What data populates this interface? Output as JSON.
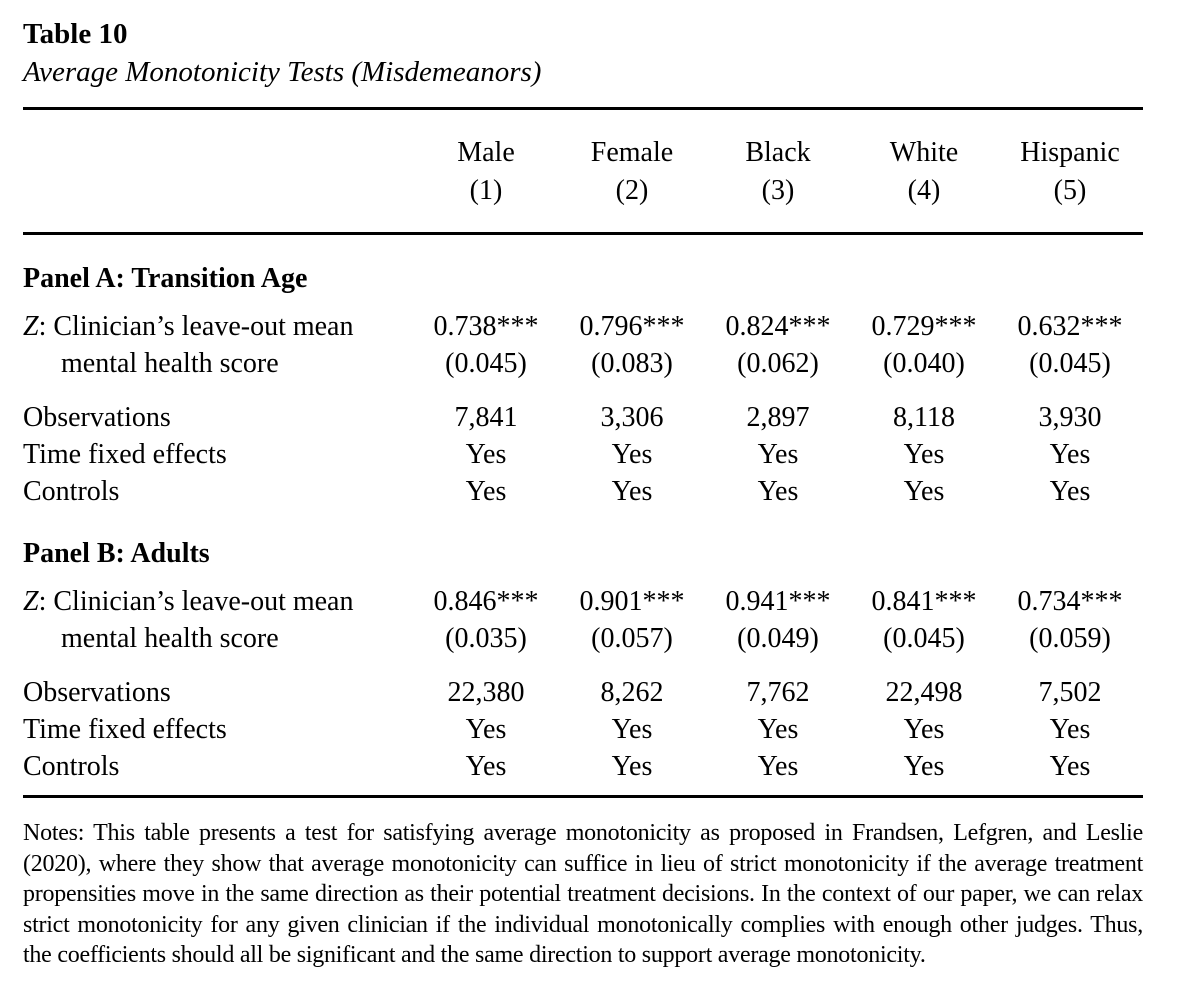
{
  "page": {
    "title": "Table 10",
    "subtitle": "Average Monotonicity Tests (Misdemeanors)"
  },
  "table": {
    "columns": [
      {
        "label": "Male",
        "num": "(1)"
      },
      {
        "label": "Female",
        "num": "(2)"
      },
      {
        "label": "Black",
        "num": "(3)"
      },
      {
        "label": "White",
        "num": "(4)"
      },
      {
        "label": "Hispanic",
        "num": "(5)"
      }
    ],
    "panels": [
      {
        "heading": "Panel A: Transition Age",
        "var_symbol": "Z",
        "var_label_rest": ": Clinician’s leave-out mean",
        "var_label_line2": "mental health score",
        "coefs": [
          "0.738***",
          "0.796***",
          "0.824***",
          "0.729***",
          "0.632***"
        ],
        "ses": [
          "(0.045)",
          "(0.083)",
          "(0.062)",
          "(0.040)",
          "(0.045)"
        ],
        "obs_label": "Observations",
        "obs": [
          "7,841",
          "3,306",
          "2,897",
          "8,118",
          "3,930"
        ],
        "tfe_label": "Time fixed effects",
        "tfe": [
          "Yes",
          "Yes",
          "Yes",
          "Yes",
          "Yes"
        ],
        "controls_label": "Controls",
        "controls": [
          "Yes",
          "Yes",
          "Yes",
          "Yes",
          "Yes"
        ]
      },
      {
        "heading": "Panel B: Adults",
        "var_symbol": "Z",
        "var_label_rest": ": Clinician’s leave-out mean",
        "var_label_line2": "mental health score",
        "coefs": [
          "0.846***",
          "0.901***",
          "0.941***",
          "0.841***",
          "0.734***"
        ],
        "ses": [
          "(0.035)",
          "(0.057)",
          "(0.049)",
          "(0.045)",
          "(0.059)"
        ],
        "obs_label": "Observations",
        "obs": [
          "22,380",
          "8,262",
          "7,762",
          "22,498",
          "7,502"
        ],
        "tfe_label": "Time fixed effects",
        "tfe": [
          "Yes",
          "Yes",
          "Yes",
          "Yes",
          "Yes"
        ],
        "controls_label": "Controls",
        "controls": [
          "Yes",
          "Yes",
          "Yes",
          "Yes",
          "Yes"
        ]
      }
    ],
    "notes": "Notes: This table presents a test for satisfying average monotonicity as proposed in Frandsen, Lefgren, and Leslie (2020), where they show that average monotonicity can suffice in lieu of strict monotonicity if the average treatment propensities move in the same direction as their potential treatment decisions. In the context of our paper, we can relax strict monotonicity for any given clinician if the individual monotonically complies with enough other judges. Thus, the coefficients should all be significant and the same direction to support average monotonicity."
  }
}
